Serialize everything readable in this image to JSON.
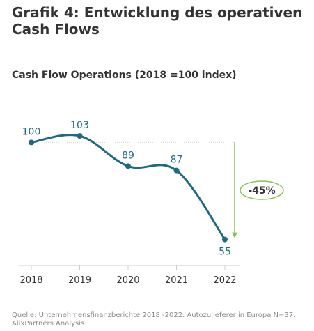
{
  "header": {
    "title_line1": "Grafik 4: Entwicklung des operativen",
    "title_line2": "Cash Flows",
    "subtitle": "Cash Flow Operations  (2018 =100 index)"
  },
  "footer": {
    "source_line1": "Quelle: Unternehmensfinanzberichte 2018 -2022. Autozulieferer in Europa N=37.",
    "source_line2": "AlixPartners Analysis."
  },
  "colors": {
    "line": "#1f6a80",
    "label": "#1f6a80",
    "arrow": "#8cc152",
    "axis": "#cccccc",
    "tick_label": "#333333"
  },
  "chart_data": {
    "type": "line",
    "title": "Cash Flow Operations  (2018 =100 index)",
    "categories": [
      "2018",
      "2019",
      "2020",
      "2021",
      "2022"
    ],
    "series": [
      {
        "values": [
          100,
          103,
          89,
          87,
          55
        ]
      }
    ],
    "data_labels": [
      "100",
      "103",
      "89",
      "87",
      "55"
    ],
    "annotation": {
      "label": "-45%",
      "from_value": 100,
      "to_value": 55
    },
    "ylim": [
      40,
      115
    ],
    "grid": false,
    "legend": "none",
    "smooth": true
  }
}
